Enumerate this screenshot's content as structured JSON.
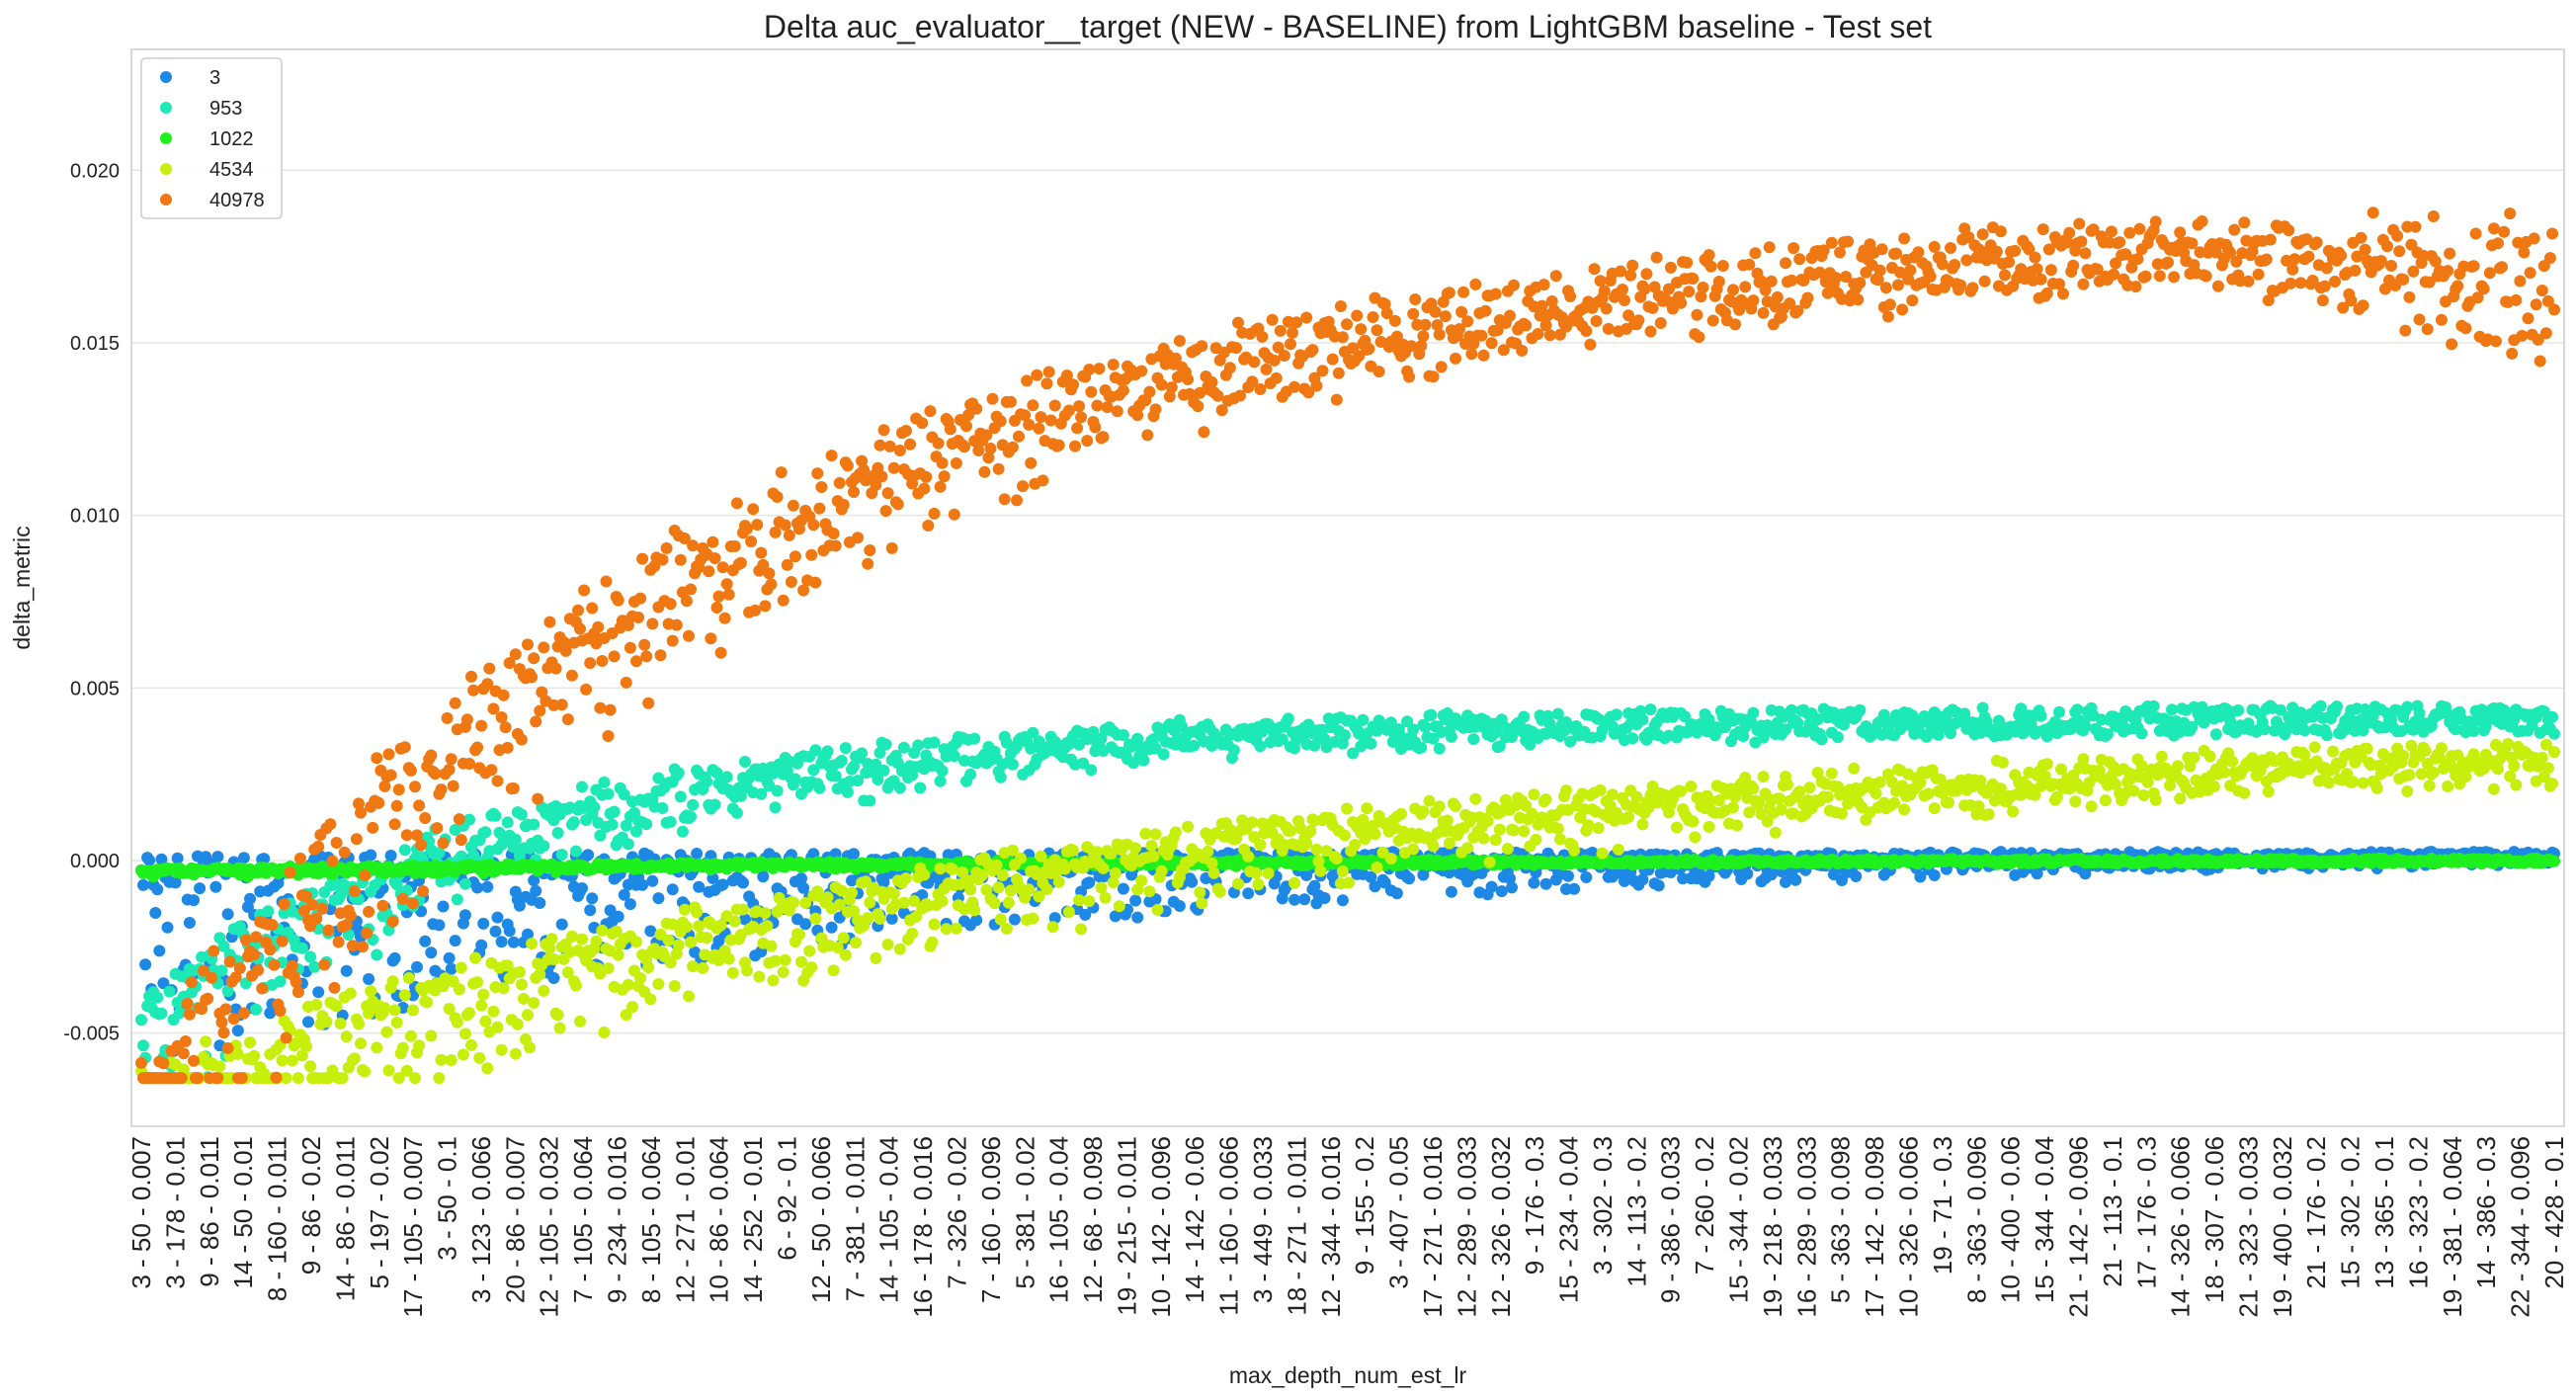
{
  "chart_data": {
    "type": "scatter",
    "title": "Delta auc_evaluator__target (NEW - BASELINE) from LightGBM baseline - Test set",
    "xlabel": "max_depth_num_est_lr",
    "ylabel": "delta_metric",
    "ylim": [
      -0.0077,
      0.0235
    ],
    "yticks": [
      -0.005,
      0.0,
      0.005,
      0.01,
      0.015,
      0.02
    ],
    "ytick_labels": [
      "-0.005",
      "0.000",
      "0.005",
      "0.010",
      "0.015",
      "0.020"
    ],
    "grid": "horizontal",
    "legend_position": "top-left",
    "n_points": 1200,
    "categories": [
      "3 - 50 - 0.007",
      "3 - 178 - 0.01",
      "9 - 86 - 0.011",
      "14 - 50 - 0.01",
      "8 - 160 - 0.011",
      "9 - 86 - 0.02",
      "14 - 86 - 0.011",
      "5 - 197 - 0.02",
      "17 - 105 - 0.007",
      "3 - 50 - 0.1",
      "3 - 123 - 0.066",
      "20 - 86 - 0.007",
      "12 - 105 - 0.032",
      "7 - 105 - 0.064",
      "9 - 234 - 0.016",
      "8 - 105 - 0.064",
      "12 - 271 - 0.01",
      "10 - 86 - 0.064",
      "14 - 252 - 0.01",
      "6 - 92 - 0.1",
      "12 - 50 - 0.066",
      "7 - 381 - 0.011",
      "14 - 105 - 0.04",
      "16 - 178 - 0.016",
      "7 - 326 - 0.02",
      "7 - 160 - 0.096",
      "5 - 381 - 0.02",
      "16 - 105 - 0.04",
      "12 - 68 - 0.098",
      "19 - 215 - 0.011",
      "10 - 142 - 0.096",
      "14 - 142 - 0.06",
      "11 - 160 - 0.066",
      "3 - 449 - 0.033",
      "18 - 271 - 0.011",
      "12 - 344 - 0.016",
      "9 - 155 - 0.2",
      "3 - 407 - 0.05",
      "17 - 271 - 0.016",
      "12 - 289 - 0.033",
      "12 - 326 - 0.032",
      "9 - 176 - 0.3",
      "15 - 234 - 0.04",
      "3 - 302 - 0.3",
      "14 - 113 - 0.2",
      "9 - 386 - 0.033",
      "7 - 260 - 0.2",
      "15 - 344 - 0.02",
      "19 - 218 - 0.033",
      "16 - 289 - 0.033",
      "5 - 363 - 0.098",
      "17 - 142 - 0.098",
      "10 - 326 - 0.066",
      "19 - 71 - 0.3",
      "8 - 363 - 0.096",
      "10 - 400 - 0.06",
      "15 - 344 - 0.04",
      "21 - 142 - 0.096",
      "21 - 113 - 0.1",
      "17 - 176 - 0.3",
      "14 - 326 - 0.066",
      "18 - 307 - 0.06",
      "21 - 323 - 0.033",
      "19 - 400 - 0.032",
      "21 - 176 - 0.2",
      "15 - 302 - 0.2",
      "13 - 365 - 0.1",
      "16 - 323 - 0.2",
      "19 - 381 - 0.064",
      "14 - 386 - 0.3",
      "22 - 344 - 0.096",
      "20 - 428 - 0.1"
    ],
    "series": [
      {
        "name": "3",
        "color": "#1e88e5",
        "baseline": 0.0001,
        "asymptote": 0.0002,
        "floor": -0.0063,
        "spread": 0.0062,
        "rate": 5.0,
        "noise": 6e-05,
        "seed": 11
      },
      {
        "name": "953",
        "color": "#1de9b6",
        "baseline": -0.0043,
        "asymptote": 0.0041,
        "floor": -0.0063,
        "spread": 0.0035,
        "rate": 7.0,
        "noise": 0.0004,
        "seed": 23
      },
      {
        "name": "1022",
        "color": "#1ef01e",
        "baseline": -0.0003,
        "asymptote": 0.0,
        "floor": -0.0063,
        "spread": 0.0002,
        "rate": 4.0,
        "noise": 7e-05,
        "seed": 37
      },
      {
        "name": "4534",
        "color": "#c6ef0c",
        "baseline": -0.0062,
        "asymptote": 0.0039,
        "floor": -0.0063,
        "spread": 0.0035,
        "rate": 2.6,
        "noise": 0.0004,
        "seed": 51
      },
      {
        "name": "40978",
        "color": "#f07812",
        "baseline": -0.0062,
        "asymptote": 0.0185,
        "floor": -0.0063,
        "spread": 0.0055,
        "rate": 4.2,
        "noise": 0.0009,
        "seed": 73
      }
    ]
  }
}
